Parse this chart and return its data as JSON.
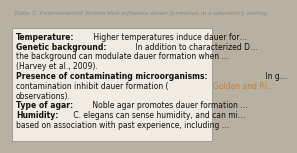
{
  "title": "Table 2. Environmental factors that influence dauer formation in a laboratory setting",
  "title_color": "#888888",
  "title_fontsize": 4.2,
  "header_bg": "#b8b0a0",
  "body_bg": "#f0ece4",
  "border_color": "#888880",
  "link_color": "#c08040",
  "text_color": "#111111",
  "body_fontsize": 5.5,
  "rows": [
    {
      "bold": "Temperature:",
      "normal": " Higher temperatures induce dauer for…"
    },
    {
      "bold": "Genetic background:",
      "normal": " In addition to characterized D…",
      "continuation": [
        "the background can modulate dauer formation when …",
        "(Harvey et al., 2009)."
      ]
    },
    {
      "bold": "Presence of contaminating microorganisms:",
      "normal": " In g…",
      "continuation": [
        "contamination inhibit dauer formation (Golden and Ri…",
        "observations)."
      ],
      "link_in_continuation": [
        1
      ]
    },
    {
      "bold": "Type of agar:",
      "normal": " Noble agar promotes dauer formation …"
    },
    {
      "bold": "Humidity:",
      "normal": " C. elegans can sense humidity, and can mi…",
      "continuation": [
        "based on association with past experience, including …"
      ]
    }
  ]
}
